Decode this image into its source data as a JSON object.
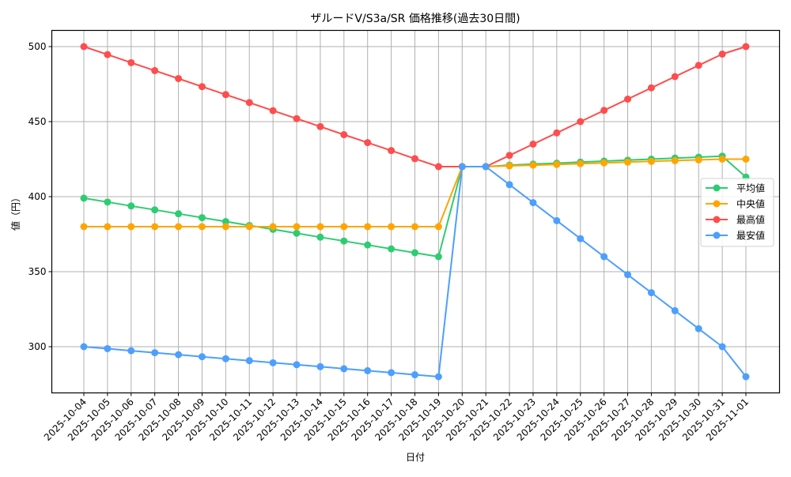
{
  "chart_data": {
    "type": "line",
    "title": "ザルードV/S3a/SR 価格推移(過去30日間)",
    "xlabel": "日付",
    "ylabel": "値（円）",
    "ylim": [
      270,
      511
    ],
    "yticks": [
      300,
      350,
      400,
      450,
      500
    ],
    "grid": true,
    "legend_position": "center right",
    "categories": [
      "2025-10-04",
      "2025-10-05",
      "2025-10-06",
      "2025-10-07",
      "2025-10-08",
      "2025-10-09",
      "2025-10-10",
      "2025-10-11",
      "2025-10-12",
      "2025-10-13",
      "2025-10-14",
      "2025-10-15",
      "2025-10-16",
      "2025-10-17",
      "2025-10-18",
      "2025-10-19",
      "2025-10-20",
      "2025-10-21",
      "2025-10-22",
      "2025-10-23",
      "2025-10-24",
      "2025-10-25",
      "2025-10-26",
      "2025-10-27",
      "2025-10-28",
      "2025-10-29",
      "2025-10-30",
      "2025-10-31",
      "2025-11-01"
    ],
    "series": [
      {
        "name": "平均値",
        "color": "#2ecc71",
        "values": [
          399,
          396.4,
          393.8,
          391.2,
          388.6,
          386,
          383.4,
          380.8,
          378.2,
          375.6,
          373,
          370.4,
          367.8,
          365.2,
          362.6,
          360,
          420,
          420,
          421,
          421.7,
          422.3,
          423,
          423.7,
          424.3,
          425,
          425.7,
          426.3,
          427,
          413
        ]
      },
      {
        "name": "中央値",
        "color": "#ffa500",
        "values": [
          380,
          380,
          380,
          380,
          380,
          380,
          380,
          380,
          380,
          380,
          380,
          380,
          380,
          380,
          380,
          380,
          420,
          420,
          420.5,
          421,
          421.5,
          422,
          422.5,
          423,
          423.5,
          424,
          424.5,
          425,
          425
        ]
      },
      {
        "name": "最高値",
        "color": "#ff4d4d",
        "values": [
          500,
          494.7,
          489.3,
          484,
          478.7,
          473.3,
          468,
          462.7,
          457.3,
          452,
          446.7,
          441.3,
          436,
          430.7,
          425.3,
          420,
          420,
          420,
          427.5,
          435,
          442.5,
          450,
          457.5,
          465,
          472.5,
          480,
          487.5,
          495,
          500
        ]
      },
      {
        "name": "最安値",
        "color": "#4d9fff",
        "values": [
          300,
          298.7,
          297.3,
          296,
          294.7,
          293.3,
          292,
          290.7,
          289.3,
          288,
          286.7,
          285.3,
          284,
          282.7,
          281.3,
          280,
          420,
          420,
          408,
          396,
          384,
          372,
          360,
          348,
          336,
          324,
          312,
          300,
          280
        ]
      }
    ]
  }
}
